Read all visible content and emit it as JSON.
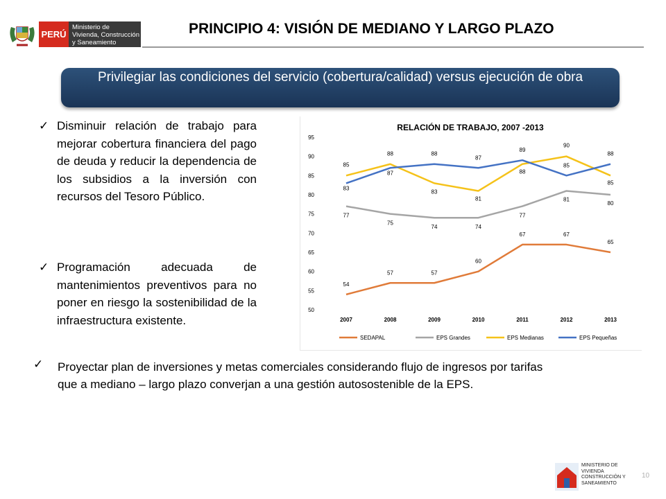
{
  "header": {
    "logo_country": "PERÚ",
    "logo_ministry_lines": [
      "Ministerio de",
      "Vivienda, Construcción",
      "y Saneamiento"
    ],
    "title": "PRINCIPIO 4:  VISIÓN DE MEDIANO Y LARGO PLAZO"
  },
  "banner": {
    "text": "Privilegiar las condiciones del servicio (cobertura/calidad) versus ejecución de obra"
  },
  "bullets": [
    {
      "check": "✓",
      "text": "Disminuir relación de trabajo para mejorar cobertura financiera del pago de deuda y  reducir la dependencia de los subsidios a la inversión con recursos del Tesoro Público."
    },
    {
      "check": "✓",
      "text": "Programación adecuada de mantenimientos preventivos para no poner en riesgo la sostenibilidad de la infraestructura existente."
    },
    {
      "check": "✓",
      "text": "Proyectar  plan de inversiones y metas comerciales considerando flujo de ingresos por tarifas que a mediano – largo plazo converjan a una gestión autosostenible de la EPS."
    }
  ],
  "chart_data": {
    "type": "line",
    "title": "RELACIÓN DE TRABAJO, 2007 -2013",
    "xlabel": "",
    "ylabel": "",
    "ylim": [
      50,
      95
    ],
    "yticks": [
      50,
      55,
      60,
      65,
      70,
      75,
      80,
      85,
      90,
      95
    ],
    "categories": [
      "2007",
      "2008",
      "2009",
      "2010",
      "2011",
      "2012",
      "2013"
    ],
    "grid": false,
    "legend_position": "bottom",
    "series": [
      {
        "name": "SEDAPAL",
        "color": "#e07b39",
        "values": [
          54,
          57,
          57,
          60,
          67,
          67,
          65
        ]
      },
      {
        "name": "EPS Grandes",
        "color": "#a5a5a5",
        "values": [
          77,
          75,
          74,
          74,
          77,
          81,
          80
        ]
      },
      {
        "name": "EPS Medianas",
        "color": "#f5c21a",
        "values": [
          85,
          88,
          83,
          81,
          88,
          90,
          85
        ]
      },
      {
        "name": "EPS Pequeñas",
        "color": "#4472c4",
        "values": [
          83,
          87,
          88,
          87,
          89,
          85,
          88
        ]
      }
    ],
    "data_labels": {
      "SEDAPAL": [
        "54",
        "57",
        "57",
        "60",
        "67",
        "67",
        "65"
      ],
      "EPS Grandes": [
        "77",
        "75",
        "74",
        "74",
        "77",
        "81",
        "80"
      ],
      "EPS Medianas": [
        "85",
        "88",
        "83",
        "81",
        "88",
        "90",
        "85"
      ],
      "EPS Pequeñas": [
        "83",
        "87",
        "88",
        "87",
        "89",
        "85",
        "88"
      ]
    }
  },
  "footer": {
    "ministry_lines": [
      "MINISTERIO DE",
      "VIVIENDA",
      "CONSTRUCCIÓN Y",
      "SANEAMIENTO"
    ],
    "page_number": "10"
  }
}
